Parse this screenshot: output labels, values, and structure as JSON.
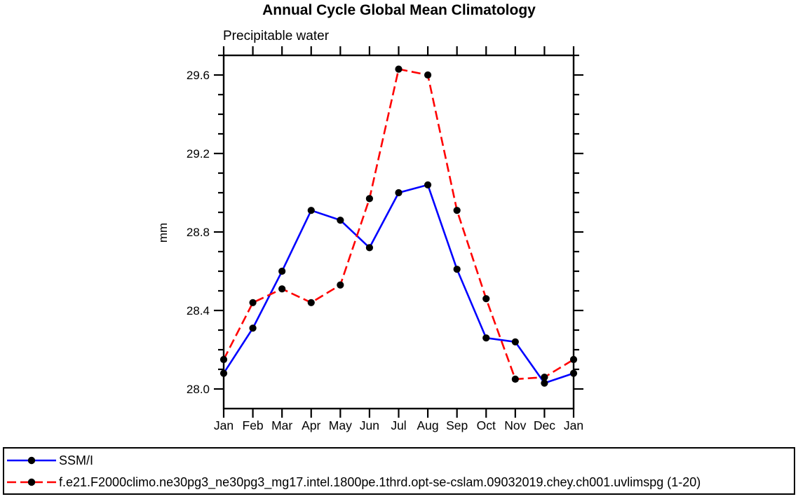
{
  "title": "Annual Cycle Global Mean Climatology",
  "subtitle": "Precipitable water",
  "ylabel": "mm",
  "legend": {
    "position": "bottom",
    "entries": [
      {
        "label": "SSM/I",
        "color": "#0000ff",
        "line_style": "solid",
        "marker": "black-filled-circle",
        "marker_color": "#000000"
      },
      {
        "label": "f.e21.F2000climo.ne30pg3_ne30pg3_mg17.intel.1800pe.1thrd.opt-se-cslam.09032019.chey.ch001.uvlimspg (1-20)",
        "color": "#ff0000",
        "line_style": "dashed",
        "marker": "black-filled-circle",
        "marker_color": "#000000"
      }
    ]
  },
  "chart_data": {
    "type": "line",
    "title": "Annual Cycle Global Mean Climatology",
    "subtitle": "Precipitable water",
    "xlabel": "",
    "ylabel": "mm",
    "categories": [
      "Jan",
      "Feb",
      "Mar",
      "Apr",
      "May",
      "Jun",
      "Jul",
      "Aug",
      "Sep",
      "Oct",
      "Nov",
      "Dec",
      "Jan"
    ],
    "series": [
      {
        "name": "SSM/I",
        "color": "#0000ff",
        "style": "solid",
        "marker_color": "#000000",
        "values": [
          28.08,
          28.31,
          28.6,
          28.91,
          28.86,
          28.72,
          29.0,
          29.04,
          28.61,
          28.26,
          28.24,
          28.03,
          28.08
        ]
      },
      {
        "name": "f.e21.F2000climo.ne30pg3_ne30pg3_mg17.intel.1800pe.1thrd.opt-se-cslam.09032019.chey.ch001.uvlimspg (1-20)",
        "color": "#ff0000",
        "style": "dashed",
        "marker_color": "#000000",
        "values": [
          28.15,
          28.44,
          28.51,
          28.44,
          28.53,
          28.97,
          29.63,
          29.6,
          28.91,
          28.46,
          28.05,
          28.06,
          28.15
        ]
      }
    ],
    "ylim": [
      27.9,
      29.7
    ],
    "yticks_major": [
      28.0,
      28.4,
      28.8,
      29.2,
      29.6
    ],
    "ytick_minor_step": 0.1,
    "grid": false,
    "legend_position": "bottom",
    "frame": "box-with-outward-ticks"
  }
}
